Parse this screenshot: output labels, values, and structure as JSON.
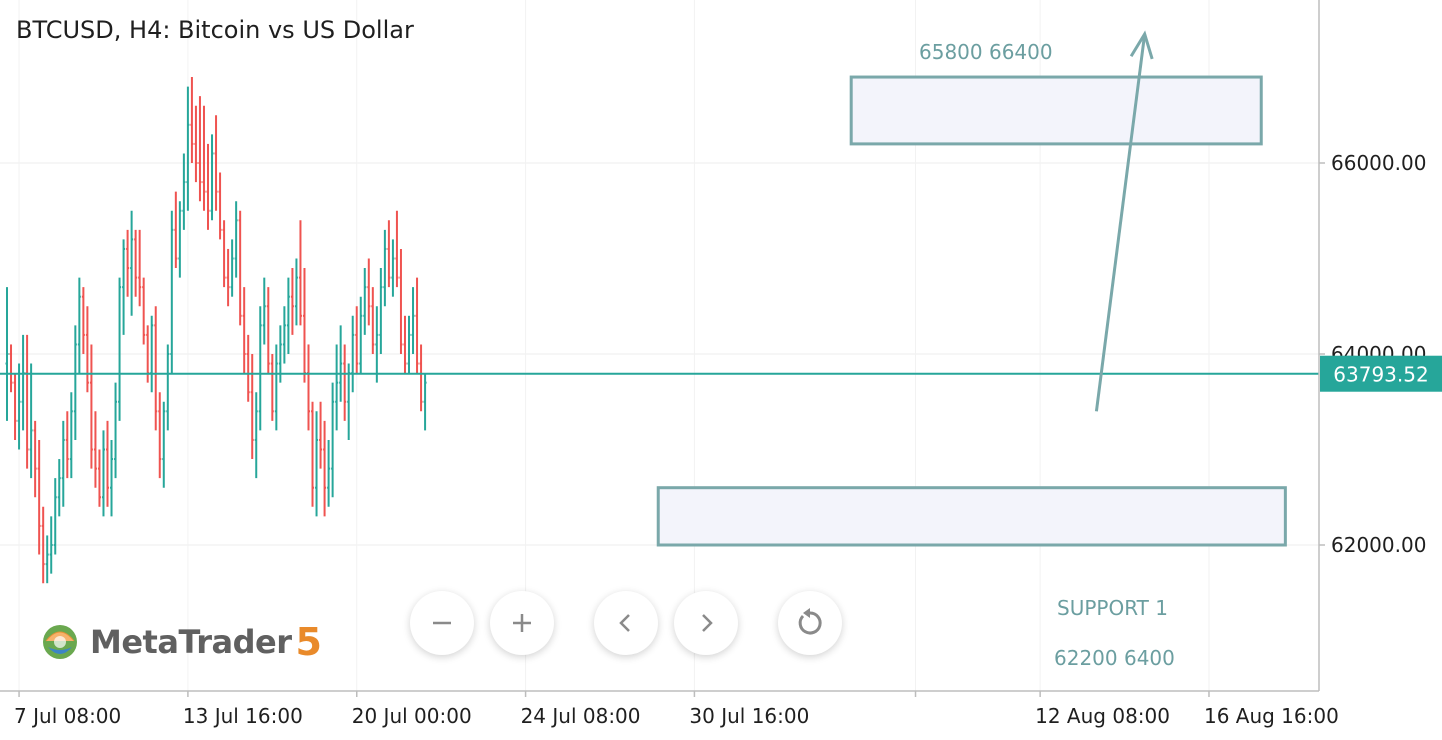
{
  "chart_data": {
    "type": "ohlc",
    "title": "BTCUSD, H4: Bitcoin vs US Dollar",
    "symbol": "BTCUSD",
    "timeframe": "H4",
    "current_price": 63793.52,
    "current_price_label": "63793.52",
    "ylim": [
      60700,
      67600
    ],
    "yticks": [
      {
        "value": 62000,
        "label": "62000.00"
      },
      {
        "value": 64000,
        "label": "64000.00"
      },
      {
        "value": 66000,
        "label": "66000.00"
      }
    ],
    "xticks": [
      {
        "label": "7 Jul 08:00",
        "bar": 3
      },
      {
        "label": "13 Jul 16:00",
        "bar": 45
      },
      {
        "label": "20 Jul 00:00",
        "bar": 87
      },
      {
        "label": "24 Jul 08:00",
        "bar": 129
      },
      {
        "label": "30 Jul 16:00",
        "bar": 171
      },
      {
        "label": "",
        "bar": 226
      },
      {
        "label": "12 Aug 08:00",
        "bar": 257
      },
      {
        "label": "16 Aug 16:00",
        "bar": 299
      }
    ],
    "colors": {
      "up": "#26a69a",
      "down": "#ef5350",
      "zone_border": "#7aa8aa",
      "zone_fill": "#f3f4fb",
      "arrow": "#7aa8aa",
      "price_line": "#26a69a"
    },
    "bars": [
      [
        63900,
        64700,
        63300,
        64000
      ],
      [
        64000,
        64100,
        63600,
        63700
      ],
      [
        63700,
        63800,
        63100,
        63300
      ],
      [
        63300,
        63900,
        63000,
        63500
      ],
      [
        63500,
        64200,
        63200,
        63800
      ],
      [
        63800,
        64200,
        62800,
        63000
      ],
      [
        63000,
        63900,
        62700,
        63200
      ],
      [
        63200,
        63300,
        62500,
        62800
      ],
      [
        62800,
        63100,
        61900,
        62200
      ],
      [
        62200,
        62400,
        61600,
        61800
      ],
      [
        61800,
        62100,
        61600,
        61900
      ],
      [
        61900,
        62300,
        61700,
        62000
      ],
      [
        62000,
        62700,
        61900,
        62500
      ],
      [
        62500,
        62900,
        62300,
        62700
      ],
      [
        62700,
        63300,
        62400,
        63100
      ],
      [
        63100,
        63400,
        62700,
        62900
      ],
      [
        62900,
        63600,
        62700,
        63400
      ],
      [
        63400,
        64300,
        63100,
        64100
      ],
      [
        64100,
        64800,
        63800,
        64600
      ],
      [
        64600,
        64700,
        64000,
        64200
      ],
      [
        64200,
        64500,
        63600,
        63700
      ],
      [
        63700,
        64100,
        62800,
        63000
      ],
      [
        63000,
        63400,
        62600,
        62800
      ],
      [
        62800,
        63000,
        62400,
        62500
      ],
      [
        62500,
        63200,
        62300,
        63000
      ],
      [
        63000,
        63300,
        62400,
        62600
      ],
      [
        62600,
        63100,
        62300,
        62900
      ],
      [
        62900,
        63700,
        62700,
        63500
      ],
      [
        63500,
        64800,
        63300,
        64700
      ],
      [
        64700,
        65200,
        64200,
        65100
      ],
      [
        65100,
        65300,
        64600,
        64900
      ],
      [
        64900,
        65500,
        64400,
        65200
      ],
      [
        65200,
        65300,
        64600,
        64800
      ],
      [
        64800,
        65300,
        64500,
        64700
      ],
      [
        64700,
        64800,
        64100,
        64200
      ],
      [
        64200,
        64300,
        63700,
        63800
      ],
      [
        63800,
        64400,
        63600,
        64300
      ],
      [
        64300,
        64500,
        63200,
        63400
      ],
      [
        63400,
        63600,
        62700,
        62900
      ],
      [
        62900,
        63500,
        62600,
        63400
      ],
      [
        63400,
        64100,
        63200,
        64000
      ],
      [
        64000,
        65500,
        63800,
        65300
      ],
      [
        65300,
        65700,
        64900,
        65000
      ],
      [
        65000,
        65600,
        64800,
        65500
      ],
      [
        65500,
        66100,
        65300,
        65800
      ],
      [
        65800,
        66800,
        65500,
        66400
      ],
      [
        66400,
        66900,
        66000,
        66200
      ],
      [
        66200,
        66600,
        65800,
        66000
      ],
      [
        66000,
        66700,
        65600,
        65800
      ],
      [
        65800,
        66600,
        65500,
        65700
      ],
      [
        65700,
        66200,
        65300,
        65500
      ],
      [
        65500,
        66300,
        65400,
        66100
      ],
      [
        66100,
        66500,
        65500,
        65700
      ],
      [
        65700,
        65900,
        65200,
        65300
      ],
      [
        65300,
        65400,
        64700,
        64800
      ],
      [
        64800,
        65100,
        64500,
        64700
      ],
      [
        64700,
        65200,
        64600,
        65000
      ],
      [
        65000,
        65600,
        64800,
        65400
      ],
      [
        65400,
        65500,
        64300,
        64400
      ],
      [
        64400,
        64700,
        63800,
        64000
      ],
      [
        64000,
        64200,
        63500,
        63600
      ],
      [
        63600,
        64000,
        62900,
        63100
      ],
      [
        63100,
        63600,
        62700,
        63400
      ],
      [
        63400,
        64500,
        63200,
        64300
      ],
      [
        64300,
        64800,
        64100,
        64500
      ],
      [
        64500,
        64700,
        63800,
        63900
      ],
      [
        63900,
        64000,
        63300,
        63400
      ],
      [
        63400,
        64100,
        63200,
        63900
      ],
      [
        63900,
        64300,
        63700,
        64100
      ],
      [
        64100,
        64500,
        63900,
        64300
      ],
      [
        64300,
        64800,
        64000,
        64600
      ],
      [
        64600,
        64900,
        64200,
        64500
      ],
      [
        64500,
        65000,
        64300,
        64800
      ],
      [
        64800,
        65400,
        64300,
        64400
      ],
      [
        64400,
        64900,
        63700,
        63800
      ],
      [
        63800,
        64100,
        63200,
        63400
      ],
      [
        63400,
        63500,
        62400,
        62600
      ],
      [
        62600,
        63400,
        62300,
        63100
      ],
      [
        63100,
        63500,
        62800,
        63000
      ],
      [
        63000,
        63300,
        62300,
        62600
      ],
      [
        62600,
        63100,
        62400,
        62800
      ],
      [
        62800,
        63700,
        62500,
        63500
      ],
      [
        63500,
        64100,
        63200,
        63700
      ],
      [
        63700,
        64300,
        63500,
        63900
      ],
      [
        63900,
        64100,
        63300,
        63500
      ],
      [
        63500,
        63900,
        63100,
        63800
      ],
      [
        63800,
        64400,
        63600,
        64200
      ],
      [
        64200,
        64500,
        63800,
        63900
      ],
      [
        63900,
        64600,
        63800,
        64400
      ],
      [
        64400,
        64900,
        64200,
        64700
      ],
      [
        64700,
        65000,
        64300,
        64500
      ],
      [
        64500,
        64700,
        64000,
        64100
      ],
      [
        64100,
        64500,
        63700,
        64200
      ],
      [
        64200,
        64900,
        64000,
        64700
      ],
      [
        64700,
        65300,
        64500,
        65100
      ],
      [
        65100,
        65400,
        64700,
        64800
      ],
      [
        64800,
        65200,
        64600,
        65000
      ],
      [
        65000,
        65500,
        64700,
        64800
      ],
      [
        64800,
        65100,
        64000,
        64100
      ],
      [
        64100,
        64400,
        63800,
        63900
      ],
      [
        63900,
        64400,
        63800,
        64200
      ],
      [
        64200,
        64700,
        64000,
        64400
      ],
      [
        64400,
        64800,
        63800,
        63900
      ],
      [
        63900,
        64100,
        63400,
        63500
      ],
      [
        63500,
        63800,
        63200,
        63700
      ]
    ],
    "zones": [
      {
        "from_bar": 210,
        "to_bar": 312,
        "low": 66200,
        "high": 66900
      },
      {
        "from_bar": 162,
        "to_bar": 318,
        "low": 62000,
        "high": 62600
      }
    ],
    "arrow": {
      "from_bar": 271,
      "from_price": 63400,
      "to_bar": 283,
      "to_price": 67350
    },
    "annotations": {
      "target": "65800 66400",
      "support": "SUPPORT 1",
      "support_values": "62200 6400"
    }
  },
  "controls": {
    "zoom_out": "−",
    "zoom_in": "+",
    "scroll_left": "‹",
    "scroll_right": "›",
    "reset_icon": "reset-icon"
  },
  "branding": {
    "logo_text": "MetaTrader",
    "logo_num": "5"
  }
}
